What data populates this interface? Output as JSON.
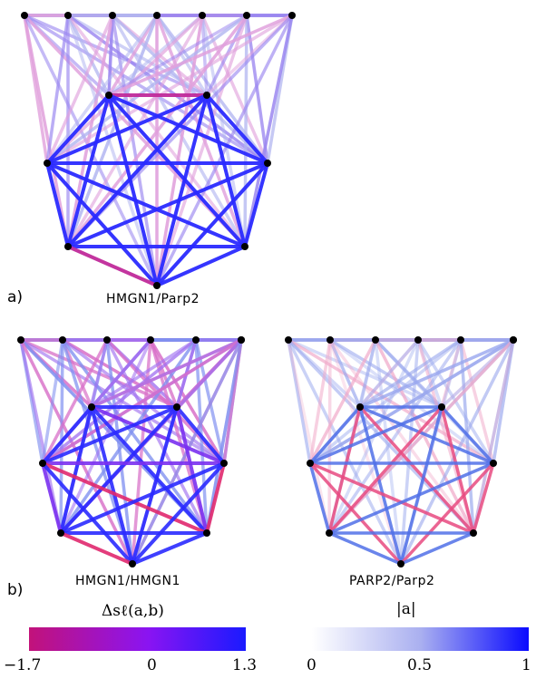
{
  "panels": {
    "a": {
      "label": "a)",
      "graphs": [
        {
          "caption": "HMGN1/Parp2"
        }
      ]
    },
    "b": {
      "label": "b)",
      "graphs": [
        {
          "caption": "HMGN1/HMGN1"
        },
        {
          "caption": "PARP2/Parp2"
        }
      ]
    }
  },
  "colorbars": {
    "delta": {
      "title": "Δsℓ(a,b)",
      "ticks": [
        "−1.7",
        "0",
        "1.3"
      ],
      "colors": [
        "#c2127a",
        "#8a14f2",
        "#1a1aff"
      ]
    },
    "magnitude": {
      "title": "|a|",
      "ticks": [
        "0",
        "0.5",
        "1"
      ],
      "colors": [
        "#ffffff",
        "#aab0f0",
        "#0a0aff"
      ]
    }
  },
  "node_color": "#000000"
}
